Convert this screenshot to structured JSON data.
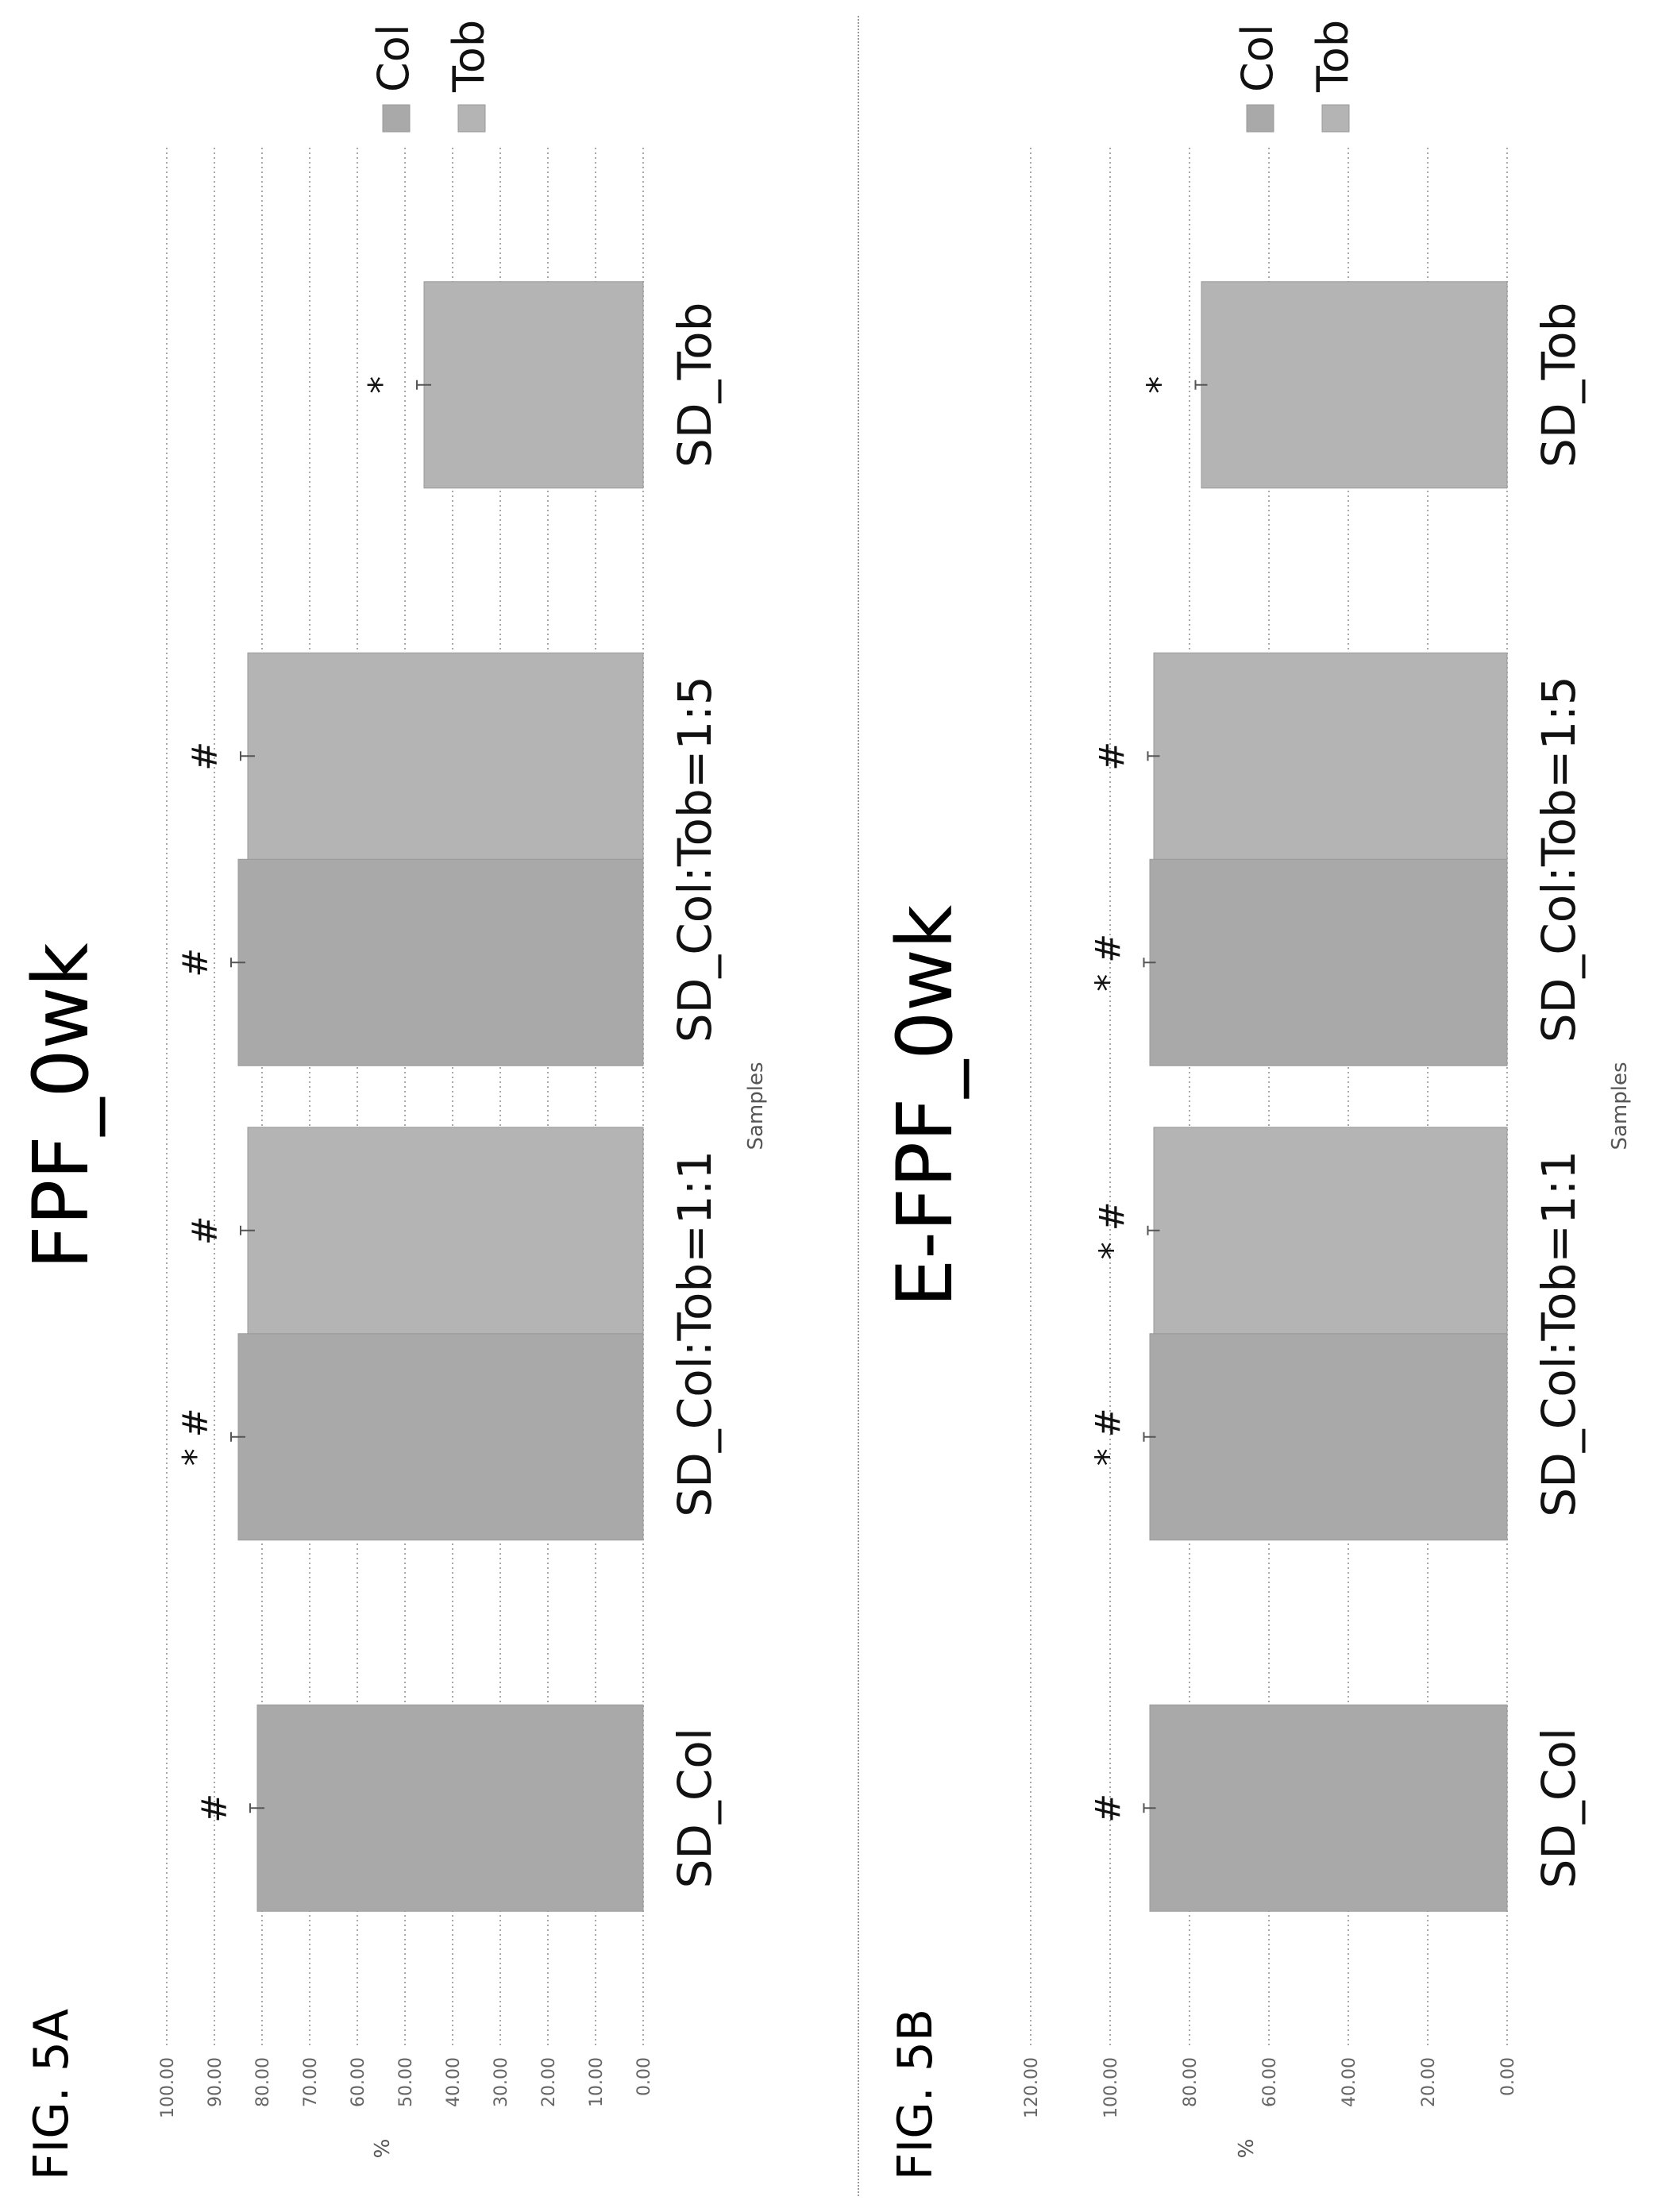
{
  "chart_data": [
    {
      "type": "bar",
      "figure_label": "FIG. 5A",
      "title": "FPF_0wk",
      "xlabel": "Samples",
      "ylabel": "%",
      "categories": [
        "SD_Col",
        "SD_Col:Tob=1:1",
        "SD_Col:Tob=1:5",
        "SD_Tob"
      ],
      "yticks": [
        "100.00",
        "90.00",
        "80.00",
        "70.00",
        "60.00",
        "50.00",
        "40.00",
        "30.00",
        "20.00",
        "10.00",
        "0.00"
      ],
      "ylim": [
        0,
        100
      ],
      "series": [
        {
          "name": "Col",
          "values": [
            81,
            85,
            85,
            null
          ],
          "errors": [
            1.5,
            1.5,
            1.5,
            null
          ],
          "markers": [
            "#",
            "* #",
            "#",
            null
          ]
        },
        {
          "name": "Tob",
          "values": [
            null,
            83,
            83,
            46
          ],
          "errors": [
            null,
            1.5,
            1.5,
            1.5
          ],
          "markers": [
            null,
            "#",
            "#",
            "*"
          ]
        }
      ],
      "grid": true,
      "legend": "top-right",
      "colors": {
        "Col": "#a9a9a9",
        "Tob": "#b4b4b4"
      }
    },
    {
      "type": "bar",
      "figure_label": "FIG. 5B",
      "title": "E-FPF_0wk",
      "xlabel": "Samples",
      "ylabel": "%",
      "categories": [
        "SD_Col",
        "SD_Col:Tob=1:1",
        "SD_Col:Tob=1:5",
        "SD_Tob"
      ],
      "yticks": [
        "120.00",
        "100.00",
        "80.00",
        "60.00",
        "40.00",
        "20.00",
        "0.00"
      ],
      "ylim": [
        0,
        120
      ],
      "series": [
        {
          "name": "Col",
          "values": [
            90,
            90,
            90,
            null
          ],
          "errors": [
            1.5,
            1.5,
            1.5,
            null
          ],
          "markers": [
            "#",
            "* #",
            "* #",
            null
          ]
        },
        {
          "name": "Tob",
          "values": [
            null,
            89,
            89,
            77
          ],
          "errors": [
            null,
            1.5,
            1.5,
            1.5
          ],
          "markers": [
            null,
            "* #",
            "#",
            "*"
          ]
        }
      ],
      "grid": true,
      "legend": "top-right",
      "colors": {
        "Col": "#a9a9a9",
        "Tob": "#b4b4b4"
      }
    }
  ]
}
